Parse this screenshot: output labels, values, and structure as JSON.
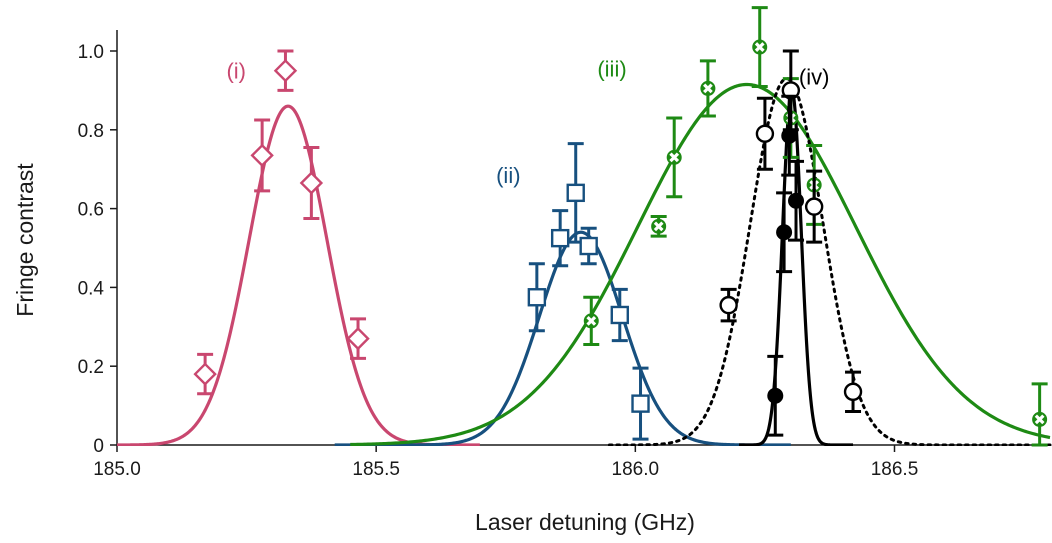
{
  "chart_data": {
    "type": "scatter",
    "xlabel": "Laser detuning (GHz)",
    "ylabel": "Fringe contrast",
    "xlim": [
      185.0,
      186.8
    ],
    "ylim": [
      0,
      1.05
    ],
    "xticks": [
      185.0,
      185.5,
      186.0,
      186.5
    ],
    "xtick_labels": [
      "185.0",
      "185.5",
      "186.0",
      "186.5"
    ],
    "yticks": [
      0,
      0.2,
      0.4,
      0.6,
      0.8,
      1.0
    ],
    "ytick_labels": [
      "0",
      "0.2",
      "0.4",
      "0.6",
      "0.8",
      "1.0"
    ],
    "grid": false,
    "series": [
      {
        "name": "(i)",
        "color": "#c9476f",
        "marker": "diamond-open",
        "fit": {
          "style": "solid",
          "amplitude": 0.86,
          "center": 185.33,
          "sigma": 0.075,
          "range": [
            185.0,
            185.7
          ]
        },
        "label_pos": {
          "x": 185.23,
          "y": 0.93
        },
        "points": [
          {
            "x": 185.17,
            "y": 0.18,
            "err": 0.05
          },
          {
            "x": 185.28,
            "y": 0.735,
            "err": 0.09
          },
          {
            "x": 185.325,
            "y": 0.95,
            "err": 0.05
          },
          {
            "x": 185.375,
            "y": 0.665,
            "err": 0.09
          },
          {
            "x": 185.465,
            "y": 0.27,
            "err": 0.05
          }
        ]
      },
      {
        "name": "(ii)",
        "color": "#17507f",
        "marker": "square-open",
        "fit": {
          "style": "solid",
          "amplitude": 0.54,
          "center": 185.895,
          "sigma": 0.08,
          "range": [
            185.42,
            186.3
          ]
        },
        "label_pos": {
          "x": 185.755,
          "y": 0.665
        },
        "points": [
          {
            "x": 185.81,
            "y": 0.375,
            "err": 0.085
          },
          {
            "x": 185.855,
            "y": 0.525,
            "err": 0.07
          },
          {
            "x": 185.885,
            "y": 0.64,
            "err": 0.125
          },
          {
            "x": 185.91,
            "y": 0.505,
            "err": 0.045
          },
          {
            "x": 185.97,
            "y": 0.33,
            "err": 0.065
          },
          {
            "x": 186.01,
            "y": 0.105,
            "err": 0.09
          }
        ]
      },
      {
        "name": "(iii)",
        "color": "#1e8a14",
        "marker": "x-open",
        "fit": {
          "style": "solid",
          "amplitude": 0.915,
          "center": 186.215,
          "sigma": 0.21,
          "range": [
            185.45,
            186.8
          ]
        },
        "label_pos": {
          "x": 185.955,
          "y": 0.935
        },
        "points": [
          {
            "x": 185.915,
            "y": 0.315,
            "err": 0.06
          },
          {
            "x": 186.045,
            "y": 0.555,
            "err": 0.025
          },
          {
            "x": 186.075,
            "y": 0.73,
            "err": 0.1
          },
          {
            "x": 186.14,
            "y": 0.905,
            "err": 0.07
          },
          {
            "x": 186.24,
            "y": 1.01,
            "err": 0.1
          },
          {
            "x": 186.3,
            "y": 0.83,
            "err": 0.1
          },
          {
            "x": 186.345,
            "y": 0.66,
            "err": 0.1
          },
          {
            "x": 186.78,
            "y": 0.065,
            "err": 0.09
          }
        ]
      },
      {
        "name": "(iv)",
        "color": "#000000",
        "marker": "circle-open",
        "fit": {
          "style": "dotted",
          "amplitude": 0.93,
          "center": 186.292,
          "sigma": 0.07,
          "range": [
            185.95,
            186.8
          ]
        },
        "label_pos": {
          "x": 186.345,
          "y": 0.915
        },
        "points": [
          {
            "x": 186.18,
            "y": 0.355,
            "err": 0.04
          },
          {
            "x": 186.25,
            "y": 0.79,
            "err": 0.09
          },
          {
            "x": 186.3,
            "y": 0.9,
            "err": 0.1
          },
          {
            "x": 186.345,
            "y": 0.605,
            "err": 0.09
          },
          {
            "x": 186.42,
            "y": 0.135,
            "err": 0.05
          }
        ]
      },
      {
        "name": "",
        "color": "#000000",
        "marker": "circle-filled",
        "fit": {
          "style": "solid",
          "amplitude": 0.9,
          "center": 186.302,
          "sigma": 0.018,
          "range": [
            186.2,
            186.42
          ]
        },
        "points": [
          {
            "x": 186.27,
            "y": 0.125,
            "err": 0.1
          },
          {
            "x": 186.287,
            "y": 0.54,
            "err": 0.1
          },
          {
            "x": 186.297,
            "y": 0.785,
            "err": 0.1
          },
          {
            "x": 186.31,
            "y": 0.62,
            "err": 0.1
          }
        ]
      }
    ]
  }
}
